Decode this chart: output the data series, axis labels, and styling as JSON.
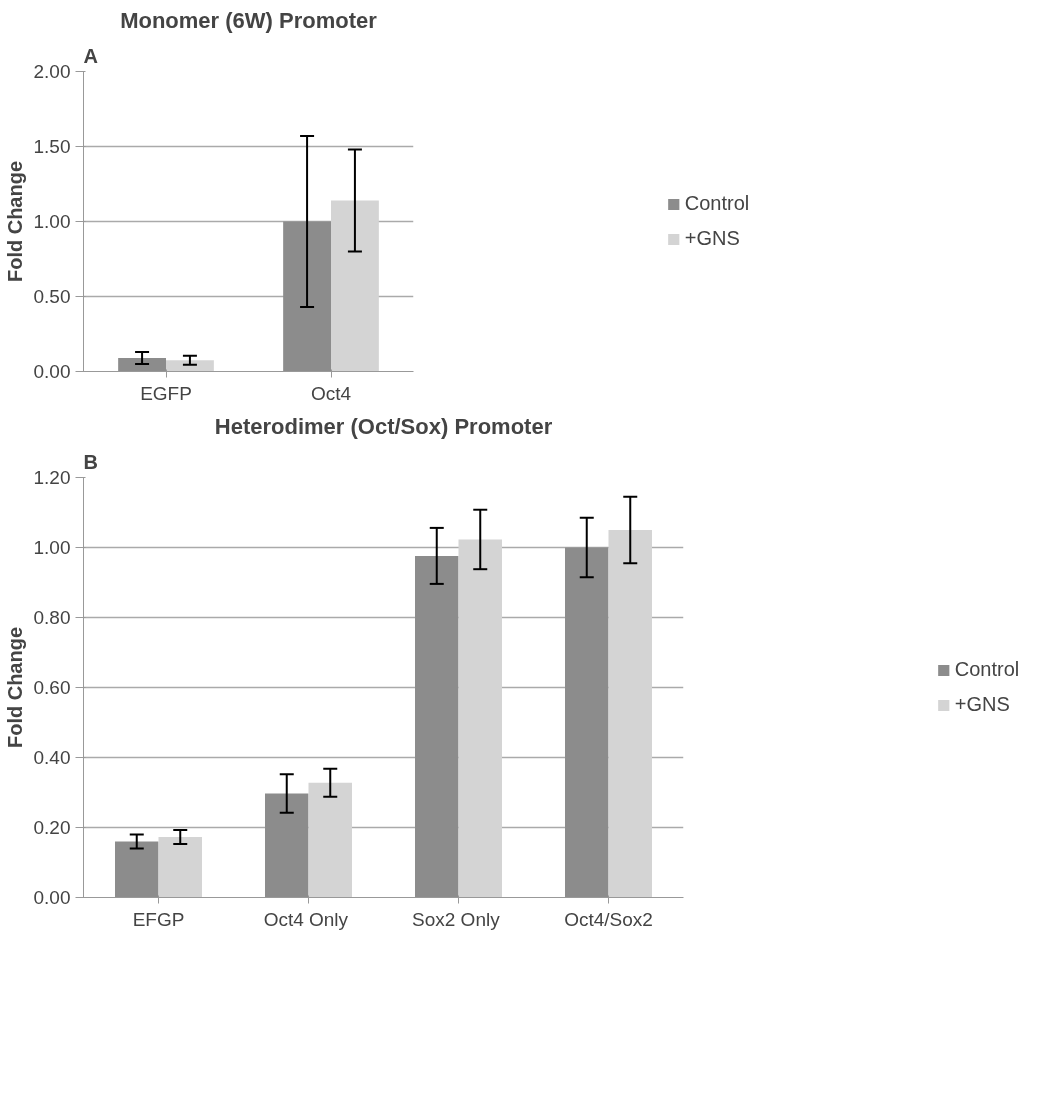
{
  "chart_data": [
    {
      "type": "bar",
      "title": "Monomer (6W) Promoter",
      "ylabel": "Fold Change",
      "annotations": [
        "A"
      ],
      "categories": [
        "EGFP",
        "Oct4"
      ],
      "series": [
        {
          "name": "Control",
          "color": "#8c8c8c",
          "values": [
            0.09,
            1.0
          ],
          "errors": [
            0.04,
            0.57
          ]
        },
        {
          "name": "+GNS",
          "color": "#d4d4d4",
          "values": [
            0.075,
            1.14
          ],
          "errors": [
            0.03,
            0.34
          ]
        }
      ],
      "ylim": [
        0,
        2
      ],
      "yticks": [
        {
          "value": 0,
          "label": "0.00"
        },
        {
          "value": 0.5,
          "label": "0.50"
        },
        {
          "value": 1,
          "label": "1.00"
        },
        {
          "value": 1.5,
          "label": "1.50"
        },
        {
          "value": 2,
          "label": "2.00"
        }
      ],
      "grid": "y",
      "legend": "right"
    },
    {
      "type": "bar",
      "title": "Heterodimer (Oct/Sox) Promoter",
      "ylabel": "Fold Change",
      "annotations": [
        "B"
      ],
      "categories": [
        "EFGP",
        "Oct4  Only",
        "Sox2  Only",
        "Oct4/Sox2"
      ],
      "series": [
        {
          "name": "Control",
          "color": "#8c8c8c",
          "values": [
            0.16,
            0.297,
            0.976,
            1.0
          ],
          "errors": [
            0.02,
            0.055,
            0.08,
            0.085
          ]
        },
        {
          "name": "+GNS",
          "color": "#d4d4d4",
          "values": [
            0.173,
            0.328,
            1.023,
            1.05
          ],
          "errors": [
            0.02,
            0.04,
            0.085,
            0.095
          ]
        }
      ],
      "ylim": [
        0,
        1.2
      ],
      "yticks": [
        {
          "value": 0,
          "label": "0.00"
        },
        {
          "value": 0.2,
          "label": "0.20"
        },
        {
          "value": 0.4,
          "label": "0.40"
        },
        {
          "value": 0.6,
          "label": "0.60"
        },
        {
          "value": 0.8,
          "label": "0.80"
        },
        {
          "value": 1.0,
          "label": "1.00"
        },
        {
          "value": 1.2,
          "label": "1.20"
        }
      ],
      "grid": "y",
      "legend": "right"
    }
  ]
}
